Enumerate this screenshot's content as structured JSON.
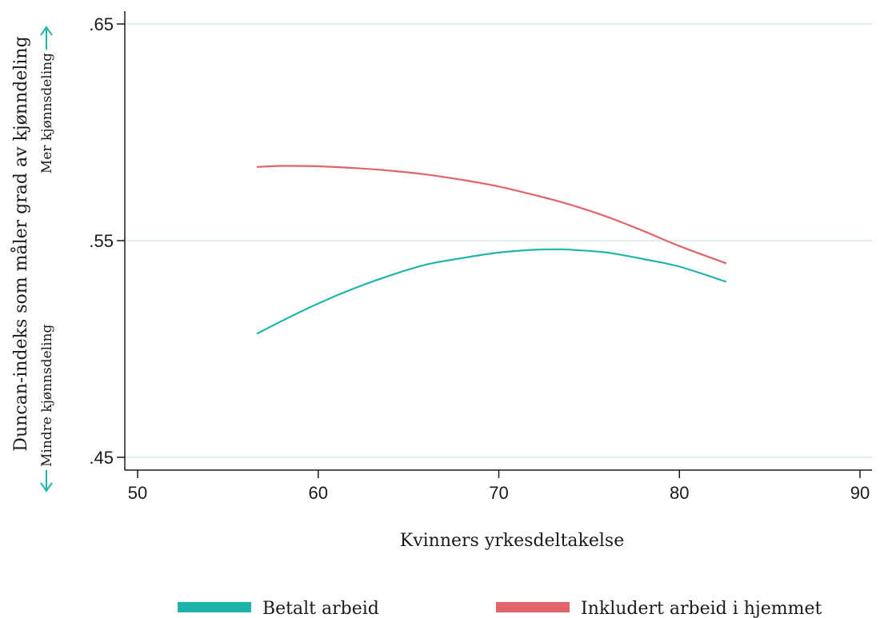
{
  "chart_data": {
    "type": "line",
    "title": "",
    "xlabel": "Kvinners yrkesdeltakelse",
    "ylabel": "Duncan-indeks som måler grad av kjønndeling",
    "xlim": [
      50,
      90
    ],
    "ylim": [
      0.45,
      0.65
    ],
    "x_ticks": [
      50,
      60,
      70,
      80,
      90
    ],
    "x_tick_labels": [
      "50",
      "60",
      "70",
      "80",
      "90"
    ],
    "y_ticks": [
      0.45,
      0.55,
      0.65
    ],
    "y_tick_labels": [
      ".45",
      ".55",
      ".65"
    ],
    "grid": true,
    "annotations": {
      "up": "Mer kjønnsdeling",
      "down": "Mindre kjønnsdeling"
    },
    "legend": {
      "placement": "bottom"
    },
    "series": [
      {
        "name": "Betalt arbeid",
        "color": "#1fb4a9",
        "x": [
          56.6,
          58,
          60,
          62,
          64,
          66,
          68,
          70,
          72,
          73.3,
          74,
          76,
          78,
          80,
          82.6
        ],
        "y": [
          0.507,
          0.513,
          0.521,
          0.528,
          0.534,
          0.539,
          0.542,
          0.5445,
          0.5458,
          0.546,
          0.5458,
          0.5445,
          0.5415,
          0.538,
          0.531
        ]
      },
      {
        "name": "Inkludert arbeid i hjemmet",
        "color": "#e0646a",
        "x": [
          56.6,
          58,
          60,
          62,
          64,
          66,
          68,
          70,
          72,
          74,
          76,
          78,
          80,
          82.6
        ],
        "y": [
          0.584,
          0.5845,
          0.5843,
          0.5835,
          0.5823,
          0.5805,
          0.578,
          0.575,
          0.571,
          0.5665,
          0.561,
          0.5545,
          0.5475,
          0.5395
        ]
      }
    ]
  }
}
